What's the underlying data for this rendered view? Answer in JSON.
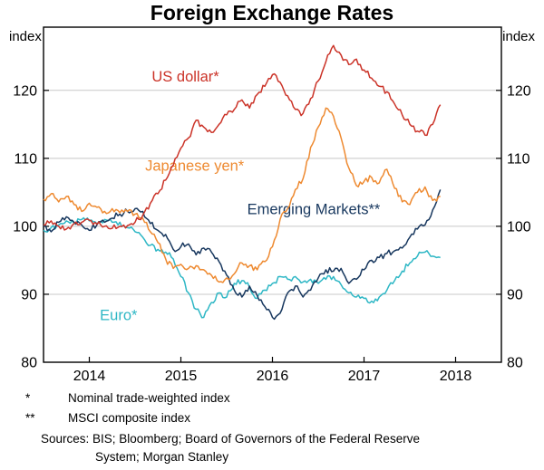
{
  "chart_data": {
    "type": "line",
    "title": "Foreign Exchange Rates",
    "y_axis_label_left": "index",
    "y_axis_label_right": "index",
    "ylim": [
      80,
      129.3
    ],
    "yticks": [
      80,
      90,
      100,
      110,
      120
    ],
    "xlim": [
      2013.5,
      2018.5
    ],
    "xticks": [
      2014,
      2015,
      2016,
      2017,
      2018
    ],
    "x_start": 2013.5,
    "x_step": 0.0833333,
    "grid": "horizontal",
    "frequency": "monthly, Jul 2013 - Nov 2017",
    "series": [
      {
        "name": "Euro*",
        "color": "#2eb7c5",
        "label_x": 2014.32,
        "label_y": 86.2,
        "values": [
          99.4,
          99.8,
          100.2,
          100.8,
          100.4,
          101.0,
          100.8,
          100.4,
          101.0,
          100.6,
          100.6,
          99.8,
          99.2,
          98.4,
          97.2,
          96.6,
          96.2,
          95.2,
          92.6,
          90.2,
          87.8,
          86.6,
          88.8,
          90.2,
          89.6,
          91.6,
          92.0,
          91.0,
          89.4,
          90.6,
          91.6,
          92.6,
          92.2,
          92.6,
          91.8,
          92.2,
          91.6,
          92.2,
          92.6,
          91.4,
          90.2,
          89.6,
          89.4,
          89.0,
          89.6,
          90.6,
          92.0,
          93.4,
          94.6,
          95.6,
          96.2,
          95.6,
          95.4
        ]
      },
      {
        "name": "Emerging Markets**",
        "color": "#17375e",
        "label_x": 2016.45,
        "label_y": 101.8,
        "values": [
          100.0,
          99.2,
          100.6,
          101.4,
          100.6,
          100.2,
          99.4,
          100.2,
          100.6,
          101.2,
          101.8,
          102.2,
          102.6,
          102.2,
          100.4,
          99.4,
          98.8,
          96.6,
          97.0,
          97.4,
          95.8,
          96.8,
          96.2,
          94.8,
          92.8,
          90.6,
          89.6,
          91.2,
          89.8,
          88.2,
          86.6,
          87.2,
          90.2,
          91.2,
          89.6,
          90.6,
          92.4,
          93.6,
          93.4,
          93.8,
          91.6,
          92.2,
          93.6,
          95.0,
          95.4,
          96.0,
          96.4,
          96.8,
          98.4,
          99.6,
          100.2,
          102.4,
          105.4
        ]
      },
      {
        "name": "Japanese yen*",
        "color": "#ee8a31",
        "label_x": 2015.15,
        "label_y": 108.2,
        "values": [
          104.0,
          104.8,
          103.6,
          104.4,
          103.2,
          102.2,
          103.4,
          102.8,
          102.2,
          102.6,
          102.0,
          102.2,
          101.8,
          101.2,
          99.2,
          97.6,
          95.2,
          93.8,
          94.4,
          93.8,
          94.2,
          93.6,
          92.8,
          91.8,
          92.4,
          93.0,
          94.6,
          94.2,
          93.6,
          94.8,
          97.0,
          101.0,
          102.6,
          105.4,
          107.0,
          111.6,
          114.6,
          117.4,
          116.2,
          113.0,
          108.6,
          106.0,
          106.6,
          107.2,
          106.4,
          108.4,
          105.6,
          103.6,
          103.2,
          105.0,
          105.8,
          103.8,
          104.4
        ]
      },
      {
        "name": "US dollar*",
        "color": "#cb3328",
        "label_x": 2015.05,
        "label_y": 121.3,
        "values": [
          100.2,
          100.8,
          100.0,
          99.6,
          100.4,
          100.6,
          100.9,
          100.3,
          100.0,
          99.7,
          100.0,
          100.1,
          100.6,
          101.6,
          103.4,
          104.8,
          106.8,
          109.0,
          111.5,
          113.0,
          115.6,
          114.6,
          113.8,
          115.0,
          116.4,
          117.2,
          118.6,
          117.4,
          119.4,
          120.6,
          122.3,
          121.2,
          119.2,
          117.2,
          116.6,
          118.8,
          121.4,
          124.2,
          126.6,
          125.2,
          123.8,
          124.6,
          123.0,
          121.8,
          120.6,
          119.8,
          118.0,
          116.4,
          115.0,
          114.0,
          113.4,
          115.0,
          117.9
        ]
      }
    ]
  },
  "footnotes": [
    {
      "marker": "*",
      "text": "Nominal trade-weighted index"
    },
    {
      "marker": "**",
      "text": "MSCI composite index"
    }
  ],
  "sources_lines": [
    "Sources: BIS; Bloomberg; Board of Governors of the Federal Reserve",
    "System; Morgan Stanley"
  ]
}
